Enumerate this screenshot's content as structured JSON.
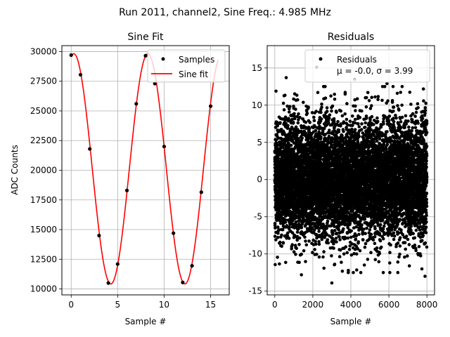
{
  "figure": {
    "suptitle": "Run 2011, channel2, Sine Freq.: 4.985 MHz"
  },
  "chart_data": [
    {
      "type": "scatter",
      "title": "Sine Fit",
      "xlabel": "Sample #",
      "ylabel": "ADC Counts",
      "xlim": [
        -1,
        17
      ],
      "ylim": [
        9500,
        30500
      ],
      "xticks": [
        0,
        5,
        10,
        15
      ],
      "yticks": [
        10000,
        12500,
        15000,
        17500,
        20000,
        22500,
        25000,
        27500,
        30000
      ],
      "grid": true,
      "legend_position": "top-right",
      "series": [
        {
          "name": "Samples",
          "kind": "points",
          "color": "#000000",
          "x": [
            0,
            1,
            2,
            3,
            4,
            5,
            6,
            7,
            8,
            9,
            10,
            11,
            12,
            13,
            14,
            15
          ],
          "y": [
            29700,
            28050,
            21800,
            14500,
            10500,
            12100,
            18300,
            25600,
            29650,
            27300,
            22000,
            14700,
            10550,
            11950,
            18150,
            25400
          ]
        },
        {
          "name": "Sine fit",
          "kind": "line",
          "color": "#ff0000",
          "model": {
            "offset": 20120,
            "amplitude": 9700,
            "period": 7.97,
            "phase_x": 0.28
          },
          "x_range": [
            0,
            15.8
          ]
        }
      ]
    },
    {
      "type": "scatter",
      "title": "Residuals",
      "xlabel": "Sample #",
      "ylabel": "",
      "xlim": [
        -400,
        8400
      ],
      "ylim": [
        -15.5,
        18
      ],
      "xticks": [
        0,
        2000,
        4000,
        6000,
        8000
      ],
      "yticks": [
        -15,
        -10,
        -5,
        0,
        5,
        10,
        15
      ],
      "grid": true,
      "legend_position": "top-right",
      "series": [
        {
          "name": "Residuals",
          "kind": "points",
          "color": "#000000",
          "n_points": 8000,
          "x_range": [
            0,
            7999
          ],
          "mean": 0.0,
          "std": 3.99,
          "outliers": [
            [
              2200,
              15.1
            ],
            [
              4200,
              13.5
            ],
            [
              600,
              13.7
            ],
            [
              3000,
              -13.9
            ],
            [
              1400,
              -12.8
            ],
            [
              7900,
              -13.0
            ],
            [
              5900,
              12.9
            ]
          ]
        }
      ],
      "stats_label": "μ = -0.0, σ = 3.99"
    }
  ]
}
